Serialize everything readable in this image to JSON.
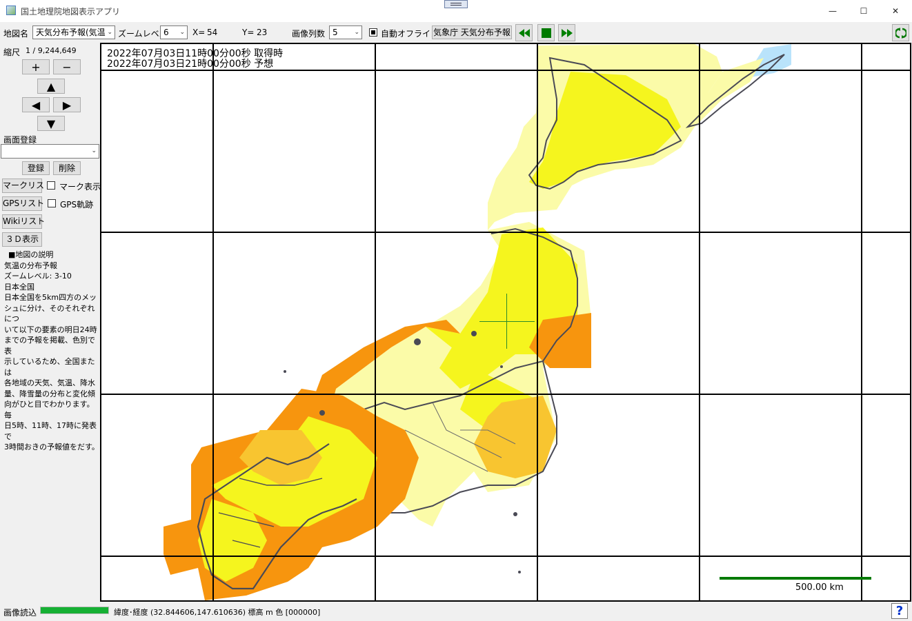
{
  "window": {
    "title": "国土地理院地図表示アプリ",
    "minimize": "—",
    "maximize": "☐",
    "close": "✕"
  },
  "toolbar": {
    "map_name_label": "地図名",
    "map_name_value": "天気分布予報(気温",
    "zoom_label": "ズームレベル",
    "zoom_value": "6",
    "x_label": "X=",
    "x_value": "54",
    "y_label": "Y=",
    "y_value": "23",
    "columns_label": "画像列数",
    "columns_value": "5",
    "auto_offline_label": "自動オフライン",
    "auto_offline_checked": true,
    "source_button": "気象庁 天気分布予報",
    "icons": [
      "rewind-icon",
      "stop-icon",
      "fast-forward-icon",
      "refresh-icon"
    ]
  },
  "left": {
    "scale_label": "縮尺",
    "scale_value": "1 / 9,244,649",
    "zoom_in": "+",
    "zoom_out": "−",
    "up": "▲",
    "left": "◀",
    "right": "▶",
    "down": "▼",
    "screen_register_label": "画面登録",
    "register_button": "登録",
    "delete_button": "削除",
    "mark_list_button": "マークリスト",
    "mark_show_label": "マーク表示",
    "gps_list_button": "GPSリスト",
    "gps_track_label": "GPS軌跡",
    "wiki_list_button": "Wikiリスト",
    "view3d_button": "３Ｄ表示",
    "description": {
      "heading": "■地図の説明",
      "lines": [
        "気温の分布予報",
        "ズームレベル: 3-10",
        "日本全国",
        "日本全国を5km四方のメッ",
        "シュに分け、そのそれぞれにつ",
        "いて以下の要素の明日24時",
        "までの予報を掲載、色別で表",
        "示しているため、全国または",
        "各地域の天気、気温、降水",
        "量、降雪量の分布と変化傾",
        "向がひと目でわかります。毎",
        "日5時、11時、17時に発表で",
        "3時間おきの予報値をだす。"
      ]
    }
  },
  "map": {
    "acquired_time": "2022年07月03日11時00分00秒 取得時",
    "forecast_time": "2022年07月03日21時00分00秒 予想",
    "scale_bar_label": "500.00 km",
    "scale_bar_color": "#007a00",
    "colors": {
      "light_yellow": "#fbfba8",
      "yellow": "#f5f51e",
      "orange_light": "#f8c530",
      "orange": "#f7950e",
      "cool_blue": "#b9e3fb",
      "coast": "#4a4a55"
    }
  },
  "status": {
    "loading_label": "画像読込",
    "progress": 1.0,
    "progress_color": "#16b034",
    "coord_text": "緯度･経度  (32.844606,147.610636) 標高  m 色 [000000]",
    "help_icon": "?"
  }
}
